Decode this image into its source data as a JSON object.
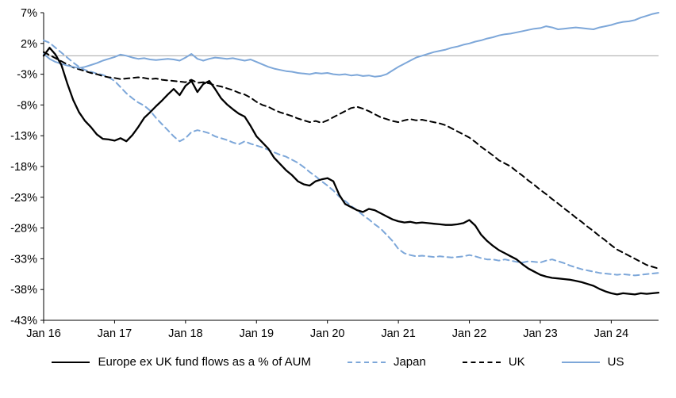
{
  "chart_data": {
    "type": "line",
    "title": "",
    "ylabel": "",
    "xlabel": "",
    "ylim": [
      -43,
      7
    ],
    "grid": false,
    "zero_line": true,
    "zero_line_color": "#a6a6a6",
    "axis_color": "#000000",
    "legend_position": "bottom",
    "y_ticks": [
      7,
      2,
      -3,
      -8,
      -13,
      -18,
      -23,
      -28,
      -33,
      -38,
      -43
    ],
    "y_tick_labels": [
      "7%",
      "2%",
      "-3%",
      "-8%",
      "-13%",
      "-18%",
      "-23%",
      "-28%",
      "-33%",
      "-38%",
      "-43%"
    ],
    "x_tick_months": [
      0,
      12,
      24,
      36,
      48,
      60,
      72,
      84,
      96
    ],
    "x_tick_labels": [
      "Jan 16",
      "Jan 17",
      "Jan 18",
      "Jan 19",
      "Jan 20",
      "Jan 21",
      "Jan 22",
      "Jan 23",
      "Jan 24"
    ],
    "x_range_note": "monthly points Jan 2016 - Sep 2024",
    "series": [
      {
        "name": "Europe ex UK fund flows as a % of AUM",
        "color": "#000000",
        "style": "solid",
        "width": 2.3,
        "values": [
          0.0,
          1.3,
          0.2,
          -1.5,
          -4.5,
          -7.2,
          -9.2,
          -10.6,
          -11.6,
          -12.8,
          -13.5,
          -13.6,
          -13.8,
          -13.4,
          -13.9,
          -12.9,
          -11.6,
          -10.1,
          -9.2,
          -8.2,
          -7.3,
          -6.3,
          -5.4,
          -6.4,
          -4.9,
          -4.1,
          -5.9,
          -4.6,
          -4.1,
          -5.4,
          -6.9,
          -7.9,
          -8.7,
          -9.4,
          -9.9,
          -11.4,
          -13.1,
          -14.1,
          -15.1,
          -16.6,
          -17.6,
          -18.6,
          -19.4,
          -20.4,
          -20.9,
          -21.1,
          -20.4,
          -20.1,
          -19.9,
          -20.4,
          -22.6,
          -24.1,
          -24.6,
          -25.1,
          -25.4,
          -24.9,
          -25.1,
          -25.6,
          -26.1,
          -26.6,
          -26.9,
          -27.1,
          -27.0,
          -27.2,
          -27.1,
          -27.2,
          -27.3,
          -27.4,
          -27.5,
          -27.5,
          -27.4,
          -27.2,
          -26.7,
          -27.6,
          -29.1,
          -30.1,
          -30.9,
          -31.6,
          -32.1,
          -32.6,
          -33.1,
          -33.9,
          -34.6,
          -35.1,
          -35.6,
          -35.9,
          -36.1,
          -36.2,
          -36.3,
          -36.4,
          -36.6,
          -36.8,
          -37.1,
          -37.4,
          -37.9,
          -38.3,
          -38.6,
          -38.8,
          -38.6,
          -38.7,
          -38.8,
          -38.6,
          -38.7,
          -38.6,
          -38.5
        ]
      },
      {
        "name": "Japan",
        "color": "#7da7d9",
        "style": "dashed",
        "width": 2,
        "values": [
          2.5,
          2.1,
          1.3,
          0.5,
          -0.3,
          -1.1,
          -1.8,
          -2.3,
          -2.6,
          -2.9,
          -3.1,
          -3.5,
          -4.1,
          -5.1,
          -6.1,
          -6.9,
          -7.6,
          -8.1,
          -8.9,
          -10.1,
          -11.1,
          -12.1,
          -13.1,
          -13.9,
          -13.4,
          -12.4,
          -12.1,
          -12.3,
          -12.6,
          -13.1,
          -13.4,
          -13.7,
          -14.1,
          -14.4,
          -13.9,
          -14.3,
          -14.6,
          -14.9,
          -15.3,
          -15.7,
          -16.1,
          -16.4,
          -16.9,
          -17.4,
          -18.1,
          -18.9,
          -19.6,
          -20.4,
          -21.1,
          -21.9,
          -22.9,
          -23.6,
          -24.4,
          -25.1,
          -25.9,
          -26.6,
          -27.4,
          -28.1,
          -29.1,
          -30.1,
          -31.4,
          -32.1,
          -32.4,
          -32.6,
          -32.5,
          -32.6,
          -32.7,
          -32.6,
          -32.7,
          -32.8,
          -32.7,
          -32.6,
          -32.4,
          -32.6,
          -32.9,
          -33.1,
          -33.1,
          -33.3,
          -33.1,
          -33.3,
          -33.5,
          -33.6,
          -33.4,
          -33.5,
          -33.6,
          -33.3,
          -33.1,
          -33.4,
          -33.7,
          -34.1,
          -34.4,
          -34.7,
          -34.9,
          -35.1,
          -35.3,
          -35.4,
          -35.5,
          -35.6,
          -35.5,
          -35.6,
          -35.7,
          -35.6,
          -35.5,
          -35.4,
          -35.3
        ]
      },
      {
        "name": "UK",
        "color": "#000000",
        "style": "dashed",
        "width": 2,
        "values": [
          0.6,
          0.1,
          -0.4,
          -0.9,
          -1.4,
          -1.9,
          -2.2,
          -2.5,
          -2.8,
          -3.0,
          -3.3,
          -3.5,
          -3.6,
          -3.8,
          -3.7,
          -3.6,
          -3.5,
          -3.6,
          -3.8,
          -3.7,
          -3.9,
          -4.0,
          -4.1,
          -4.2,
          -4.3,
          -3.9,
          -4.4,
          -4.3,
          -4.5,
          -4.8,
          -5.0,
          -5.3,
          -5.6,
          -6.0,
          -6.3,
          -6.8,
          -7.5,
          -8.0,
          -8.3,
          -8.8,
          -9.2,
          -9.5,
          -9.8,
          -10.2,
          -10.5,
          -10.8,
          -10.6,
          -10.9,
          -10.5,
          -10.0,
          -9.5,
          -9.0,
          -8.5,
          -8.3,
          -8.6,
          -9.0,
          -9.5,
          -10.0,
          -10.3,
          -10.6,
          -10.8,
          -10.5,
          -10.3,
          -10.5,
          -10.4,
          -10.6,
          -10.8,
          -11.0,
          -11.3,
          -11.8,
          -12.3,
          -12.8,
          -13.3,
          -14.0,
          -14.8,
          -15.5,
          -16.2,
          -17.0,
          -17.5,
          -18.0,
          -18.8,
          -19.5,
          -20.3,
          -21.0,
          -21.8,
          -22.5,
          -23.3,
          -24.0,
          -24.8,
          -25.5,
          -26.3,
          -27.0,
          -27.8,
          -28.5,
          -29.3,
          -30.0,
          -30.8,
          -31.5,
          -32.0,
          -32.5,
          -33.0,
          -33.5,
          -34.0,
          -34.3,
          -34.6
        ]
      },
      {
        "name": "US",
        "color": "#7da7d9",
        "style": "solid",
        "width": 2,
        "values": [
          0.3,
          -0.5,
          -1.0,
          -1.3,
          -1.6,
          -1.8,
          -2.0,
          -1.8,
          -1.5,
          -1.2,
          -0.8,
          -0.5,
          -0.2,
          0.2,
          0.0,
          -0.3,
          -0.5,
          -0.4,
          -0.6,
          -0.7,
          -0.6,
          -0.5,
          -0.6,
          -0.8,
          -0.3,
          0.3,
          -0.5,
          -0.8,
          -0.5,
          -0.3,
          -0.4,
          -0.5,
          -0.4,
          -0.6,
          -0.8,
          -0.6,
          -1.0,
          -1.4,
          -1.8,
          -2.1,
          -2.3,
          -2.5,
          -2.6,
          -2.8,
          -2.9,
          -3.0,
          -2.8,
          -2.9,
          -2.8,
          -3.0,
          -3.1,
          -3.0,
          -3.2,
          -3.1,
          -3.3,
          -3.2,
          -3.4,
          -3.3,
          -3.0,
          -2.4,
          -1.8,
          -1.3,
          -0.8,
          -0.3,
          0.0,
          0.3,
          0.6,
          0.8,
          1.0,
          1.3,
          1.5,
          1.8,
          2.0,
          2.3,
          2.5,
          2.8,
          3.0,
          3.3,
          3.5,
          3.6,
          3.8,
          4.0,
          4.2,
          4.4,
          4.5,
          4.8,
          4.6,
          4.3,
          4.4,
          4.5,
          4.6,
          4.5,
          4.4,
          4.3,
          4.6,
          4.8,
          5.0,
          5.3,
          5.5,
          5.6,
          5.8,
          6.2,
          6.5,
          6.8,
          7.0
        ]
      }
    ]
  }
}
